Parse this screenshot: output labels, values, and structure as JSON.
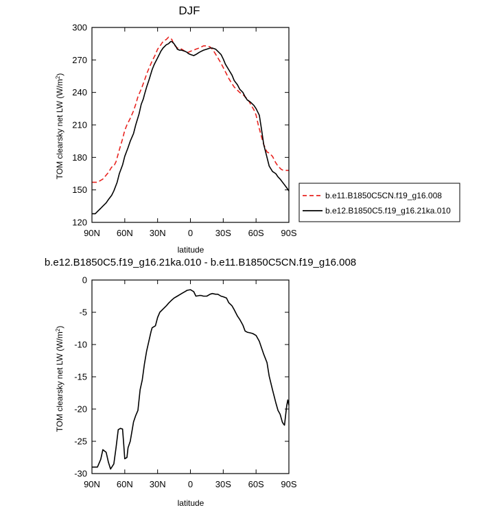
{
  "chart_data": [
    {
      "type": "line",
      "title": "DJF",
      "xlabel": "latitude",
      "ylabel": "TOM clearsky net LW (W/m²)",
      "ylabel_main": "TOM clearsky net LW (W/m",
      "ylabel_sup": "2",
      "ylabel_close": ")",
      "x_ticks": [
        {
          "value": 90,
          "label": "90N"
        },
        {
          "value": 60,
          "label": "60N"
        },
        {
          "value": 30,
          "label": "30N"
        },
        {
          "value": 0,
          "label": "0"
        },
        {
          "value": -30,
          "label": "30S"
        },
        {
          "value": -60,
          "label": "60S"
        },
        {
          "value": -90,
          "label": "90S"
        }
      ],
      "xlim": [
        90,
        -90
      ],
      "ylim": [
        120,
        300
      ],
      "y_ticks": [
        120,
        150,
        180,
        210,
        240,
        270,
        300
      ],
      "legend_position": "right",
      "series": [
        {
          "name": "b.e11.B1850C5CN.f19_g16.008",
          "color": "#e8231f",
          "dash": "dashed",
          "x": [
            90,
            85,
            80,
            75,
            72,
            70,
            68,
            65,
            62,
            60,
            58,
            55,
            52,
            50,
            48,
            45,
            42,
            40,
            38,
            35,
            32,
            30,
            27,
            25,
            22,
            20,
            17,
            15,
            13,
            12,
            10,
            8,
            5,
            3,
            2,
            0,
            -3,
            -5,
            -8,
            -10,
            -12,
            -15,
            -18,
            -20,
            -22,
            -25,
            -28,
            -30,
            -33,
            -35,
            -38,
            -40,
            -43,
            -45,
            -48,
            -50,
            -53,
            -55,
            -58,
            -60,
            -62,
            -65,
            -67,
            -70,
            -72,
            -75,
            -78,
            -80,
            -83,
            -85,
            -88,
            -90
          ],
          "y": [
            157,
            157,
            160,
            166,
            171,
            172,
            176,
            187,
            197,
            205,
            210,
            216,
            223,
            229,
            236,
            243,
            251,
            257,
            262,
            269,
            275,
            280,
            284,
            287,
            289,
            291,
            289,
            284,
            282,
            281,
            281,
            280,
            278,
            277,
            277,
            278,
            279,
            280,
            281,
            282,
            283,
            283,
            282,
            280,
            277,
            272,
            267,
            263,
            257,
            253,
            248,
            245,
            242,
            240,
            238,
            236,
            233,
            229,
            224,
            219,
            210,
            199,
            192,
            185,
            184,
            181,
            175,
            172,
            169,
            168,
            168,
            168
          ]
        },
        {
          "name": "b.e12.B1850C5.f19_g16.21ka.010",
          "color": "#000000",
          "dash": "solid",
          "x": [
            90,
            87,
            85,
            82,
            80,
            77,
            75,
            72,
            70,
            67,
            65,
            62,
            60,
            57,
            55,
            52,
            50,
            47,
            45,
            43,
            42,
            40,
            38,
            35,
            33,
            30,
            28,
            27,
            25,
            22,
            20,
            18,
            17,
            15,
            13,
            12,
            10,
            8,
            5,
            3,
            2,
            0,
            -3,
            -5,
            -8,
            -10,
            -12,
            -15,
            -18,
            -20,
            -23,
            -25,
            -28,
            -30,
            -32,
            -35,
            -38,
            -40,
            -43,
            -45,
            -48,
            -50,
            -52,
            -55,
            -58,
            -60,
            -63,
            -65,
            -67,
            -70,
            -72,
            -75,
            -78,
            -80,
            -82,
            -85,
            -88,
            -90
          ],
          "y": [
            128,
            128,
            130,
            133,
            135,
            138,
            141,
            145,
            149,
            157,
            165,
            173,
            181,
            189,
            195,
            202,
            210,
            220,
            229,
            234,
            238,
            245,
            251,
            261,
            266,
            272,
            276,
            278,
            281,
            284,
            285,
            287,
            287,
            285,
            282,
            280,
            279,
            279,
            278,
            277,
            276,
            275,
            274,
            275,
            277,
            278,
            279,
            280,
            281,
            281,
            280,
            278,
            275,
            271,
            266,
            261,
            256,
            251,
            247,
            243,
            240,
            236,
            233,
            231,
            228,
            225,
            219,
            206,
            192,
            180,
            172,
            167,
            165,
            162,
            160,
            156,
            152,
            149
          ]
        }
      ]
    },
    {
      "type": "line",
      "title": "b.e12.B1850C5.f19_g16.21ka.010 - b.e11.B1850C5CN.f19_g16.008",
      "xlabel": "latitude",
      "ylabel": "TOM clearsky net LW (W/m²)",
      "ylabel_main": "TOM clearsky net LW (W/m",
      "ylabel_sup": "2",
      "ylabel_close": ")",
      "x_ticks": [
        {
          "value": 90,
          "label": "90N"
        },
        {
          "value": 60,
          "label": "60N"
        },
        {
          "value": 30,
          "label": "30N"
        },
        {
          "value": 0,
          "label": "0"
        },
        {
          "value": -30,
          "label": "30S"
        },
        {
          "value": -60,
          "label": "60S"
        },
        {
          "value": -90,
          "label": "90S"
        }
      ],
      "xlim": [
        90,
        -90
      ],
      "ylim": [
        -30,
        0
      ],
      "y_ticks": [
        -30,
        -25,
        -20,
        -15,
        -10,
        -5,
        0
      ],
      "series": [
        {
          "color": "#000000",
          "dash": "solid",
          "x": [
            90,
            87,
            85,
            82,
            80,
            77,
            75,
            73,
            70,
            68,
            66,
            64,
            62,
            61,
            60,
            58,
            57,
            55,
            53,
            52,
            50,
            48,
            46,
            44,
            42,
            40,
            38,
            36,
            35,
            32,
            30,
            28,
            25,
            22,
            20,
            17,
            15,
            12,
            10,
            8,
            5,
            3,
            0,
            -3,
            -5,
            -8,
            -10,
            -12,
            -15,
            -18,
            -20,
            -23,
            -25,
            -28,
            -30,
            -33,
            -35,
            -38,
            -40,
            -43,
            -45,
            -48,
            -50,
            -52,
            -55,
            -57,
            -60,
            -63,
            -65,
            -67,
            -70,
            -72,
            -75,
            -78,
            -80,
            -82,
            -84,
            -85,
            -86,
            -88,
            -89,
            -90
          ],
          "y": [
            -29,
            -29,
            -29.0,
            -27.8,
            -26.3,
            -26.7,
            -28.2,
            -29.3,
            -28.5,
            -26.0,
            -23.2,
            -23.0,
            -23.1,
            -25.3,
            -27.7,
            -27.5,
            -26.0,
            -25.0,
            -23.0,
            -22.0,
            -21.0,
            -20.2,
            -17.0,
            -15.5,
            -13.0,
            -11.0,
            -9.5,
            -8.0,
            -7.4,
            -7.1,
            -5.8,
            -5.0,
            -4.5,
            -4.0,
            -3.6,
            -3.1,
            -2.8,
            -2.5,
            -2.3,
            -2.1,
            -1.8,
            -1.6,
            -1.5,
            -1.8,
            -2.5,
            -2.4,
            -2.4,
            -2.5,
            -2.5,
            -2.2,
            -2.1,
            -2.2,
            -2.2,
            -2.5,
            -2.6,
            -2.8,
            -3.5,
            -4.0,
            -4.6,
            -5.6,
            -6.1,
            -7.0,
            -7.9,
            -8.1,
            -8.2,
            -8.3,
            -8.6,
            -9.5,
            -10.5,
            -11.5,
            -12.8,
            -14.9,
            -17.0,
            -19.0,
            -20.2,
            -20.8,
            -22.0,
            -22.3,
            -22.5,
            -19.5,
            -18.6,
            -19.4
          ]
        }
      ]
    }
  ]
}
